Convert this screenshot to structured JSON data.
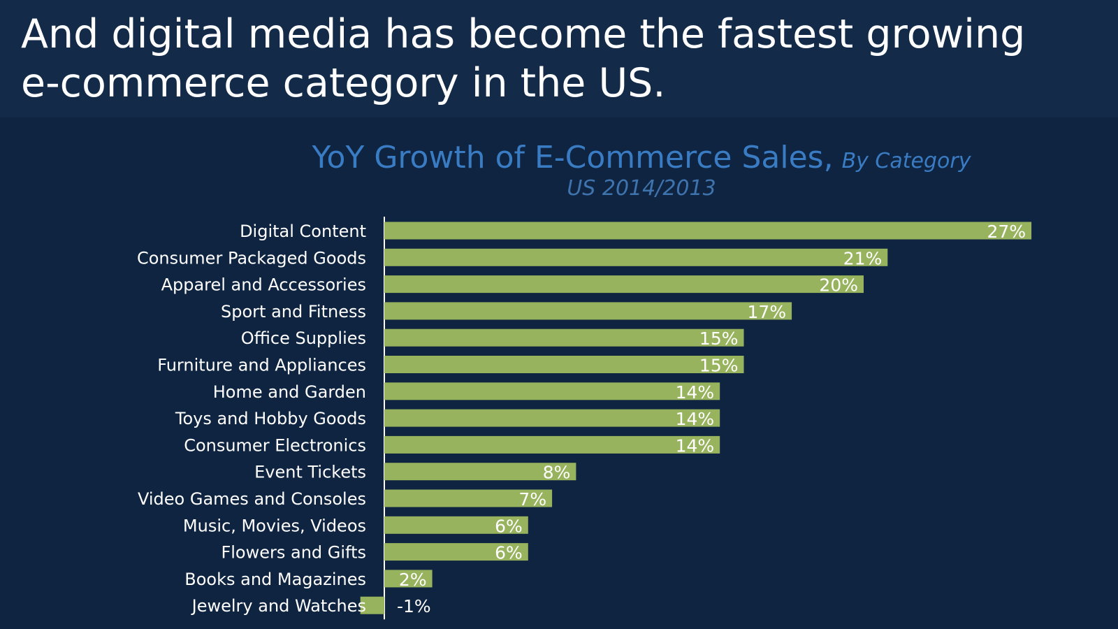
{
  "slide": {
    "headline_line1": "And digital media has become the fastest growing",
    "headline_line2": "e-commerce category in the US."
  },
  "colors": {
    "background": "#0f2440",
    "headline_band": "#132b48",
    "bar": "#98b35e",
    "title": "#3a7cc4",
    "subtitle": "#3f73ad",
    "text": "#ffffff",
    "axis": "#ffffff"
  },
  "chart_data": {
    "type": "bar",
    "orientation": "horizontal",
    "title": "YoY Growth of  E-Commerce Sales,",
    "title_suffix": "By Category",
    "subtitle": "US 2014/2013",
    "xlabel": "",
    "ylabel": "",
    "xlim": [
      -1,
      27
    ],
    "grid": false,
    "categories": [
      "Digital Content",
      "Consumer Packaged Goods",
      "Apparel and Accessories",
      "Sport and Fitness",
      "Office Supplies",
      "Furniture and Appliances",
      "Home and Garden",
      "Toys and Hobby Goods",
      "Consumer Electronics",
      "Event Tickets",
      "Video Games and Consoles",
      "Music, Movies, Videos",
      "Flowers and Gifts",
      "Books and Magazines",
      "Jewelry and Watches"
    ],
    "values": [
      27,
      21,
      20,
      17,
      15,
      15,
      14,
      14,
      14,
      8,
      7,
      6,
      6,
      2,
      -1
    ],
    "data_labels": [
      "27%",
      "21%",
      "20%",
      "17%",
      "15%",
      "15%",
      "14%",
      "14%",
      "14%",
      "8%",
      "7%",
      "6%",
      "6%",
      "2%",
      "-1%"
    ]
  }
}
